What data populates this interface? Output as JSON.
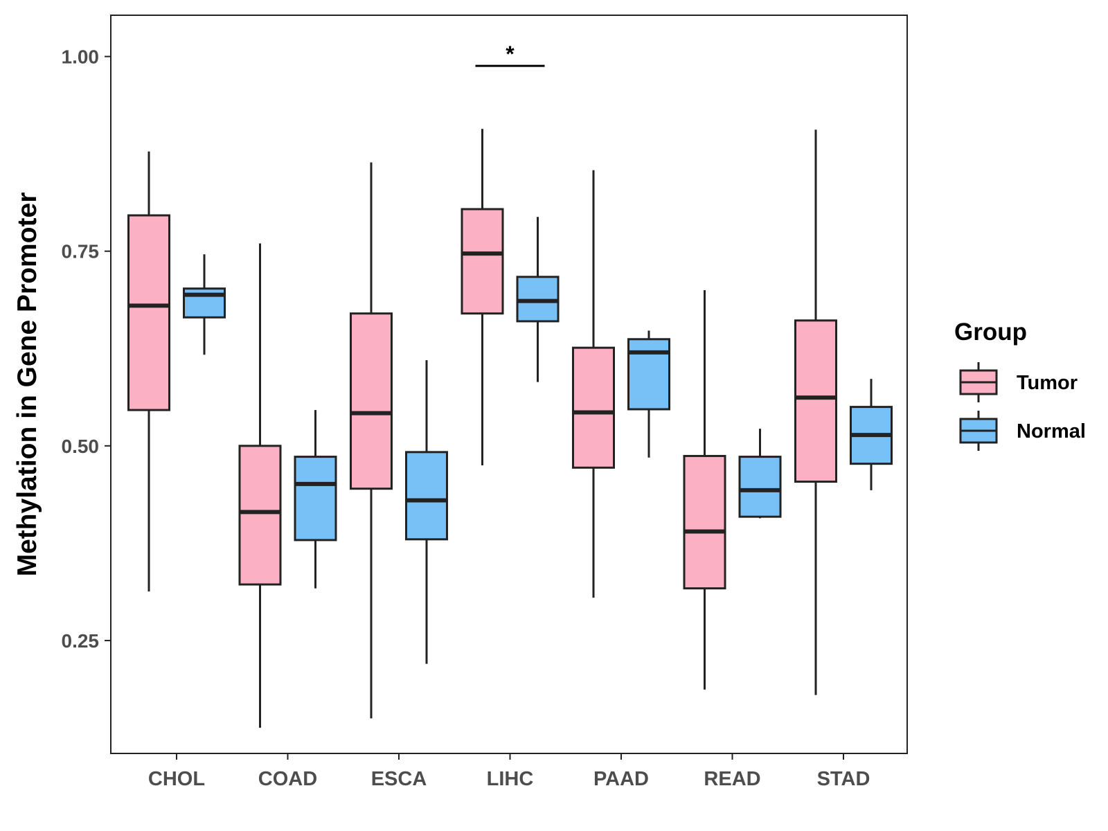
{
  "chart_data": {
    "type": "boxplot",
    "title": "",
    "xlabel": "",
    "ylabel": "Methylation in Gene Promoter",
    "ylim": [
      0.105,
      1.053
    ],
    "yticks": [
      "0.25",
      "0.50",
      "0.75",
      "1.00"
    ],
    "categories": [
      "CHOL",
      "COAD",
      "ESCA",
      "LIHC",
      "PAAD",
      "READ",
      "STAD"
    ],
    "legend": {
      "title": "Group",
      "position": "right"
    },
    "series": [
      {
        "name": "Tumor",
        "color": "#FBB1C3",
        "boxes": [
          {
            "min": 0.313,
            "q1": 0.546,
            "median": 0.68,
            "q3": 0.796,
            "max": 0.878
          },
          {
            "min": 0.138,
            "q1": 0.322,
            "median": 0.415,
            "q3": 0.5,
            "max": 0.76
          },
          {
            "min": 0.15,
            "q1": 0.445,
            "median": 0.542,
            "q3": 0.67,
            "max": 0.864
          },
          {
            "min": 0.475,
            "q1": 0.67,
            "median": 0.747,
            "q3": 0.804,
            "max": 0.907
          },
          {
            "min": 0.305,
            "q1": 0.472,
            "median": 0.543,
            "q3": 0.626,
            "max": 0.854
          },
          {
            "min": 0.187,
            "q1": 0.317,
            "median": 0.39,
            "q3": 0.487,
            "max": 0.7
          },
          {
            "min": 0.18,
            "q1": 0.454,
            "median": 0.562,
            "q3": 0.661,
            "max": 0.906
          }
        ]
      },
      {
        "name": "Normal",
        "color": "#77C1F7",
        "boxes": [
          {
            "min": 0.617,
            "q1": 0.665,
            "median": 0.694,
            "q3": 0.702,
            "max": 0.746
          },
          {
            "min": 0.317,
            "q1": 0.379,
            "median": 0.451,
            "q3": 0.486,
            "max": 0.546
          },
          {
            "min": 0.22,
            "q1": 0.38,
            "median": 0.43,
            "q3": 0.492,
            "max": 0.61
          },
          {
            "min": 0.582,
            "q1": 0.66,
            "median": 0.686,
            "q3": 0.717,
            "max": 0.794
          },
          {
            "min": 0.485,
            "q1": 0.547,
            "median": 0.62,
            "q3": 0.637,
            "max": 0.648
          },
          {
            "min": 0.407,
            "q1": 0.409,
            "median": 0.443,
            "q3": 0.486,
            "max": 0.522
          },
          {
            "min": 0.443,
            "q1": 0.477,
            "median": 0.514,
            "q3": 0.55,
            "max": 0.586
          }
        ]
      }
    ],
    "annotations": [
      {
        "category": "LIHC",
        "label": "*",
        "y": 0.988
      }
    ],
    "grid": false
  }
}
